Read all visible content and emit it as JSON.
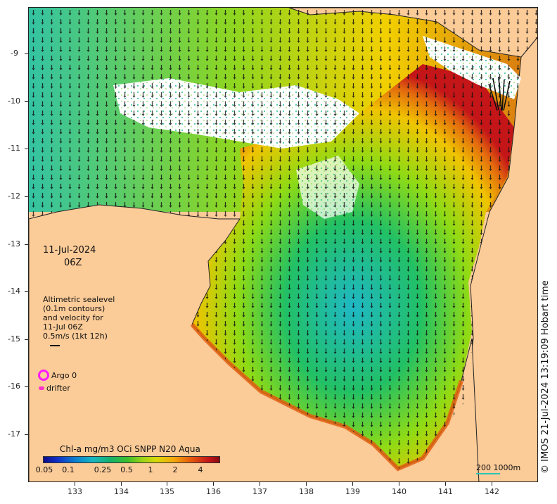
{
  "map": {
    "date_line": "11-Jul-2024",
    "time_line": "06Z",
    "velocity_legend": {
      "line1": "Altimetric sealevel",
      "line2": "(0.1m contours)",
      "line3": "and velocity for",
      "line4": "11-Jul 06Z",
      "line5": "0.5m/s (1kt 12h)"
    },
    "markers": {
      "argo_label": "Argo 0",
      "drifter_label": "drifter"
    },
    "colorbar": {
      "title": "Chl-a mg/m3 OCi SNPP N20 Aqua",
      "tick_labels": [
        "0.05",
        "0.1",
        "0.25",
        "0.5",
        "1",
        "2",
        "4"
      ]
    },
    "scale": {
      "label": "200  1000m"
    },
    "credit": "© IMOS 21-Jul-2024 13:19:09 Hobart time",
    "x_axis": {
      "tick_labels": [
        "133",
        "134",
        "135",
        "136",
        "137",
        "138",
        "139",
        "140",
        "141",
        "142"
      ]
    },
    "y_axis": {
      "tick_labels": [
        "-9",
        "-10",
        "-11",
        "-12",
        "-13",
        "-14",
        "-15",
        "-16",
        "-17"
      ]
    },
    "colors": {
      "land": "#fbcb98",
      "cloud": "#ffffff",
      "chl_high": "#c8101a",
      "chl_mid": "#99dd11",
      "chl_low": "#1fa7c0",
      "arrows": "#111111",
      "argo": "#ff1aff",
      "drifter": "#ff33cc"
    }
  }
}
